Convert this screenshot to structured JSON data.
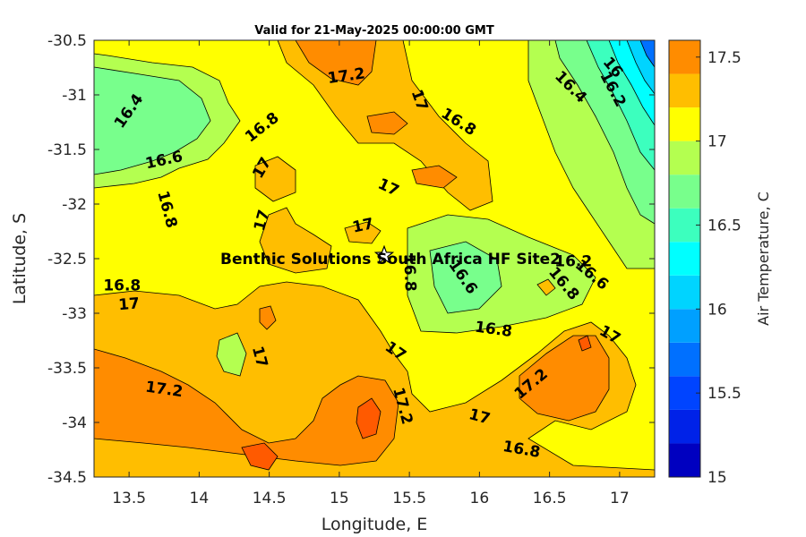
{
  "chart_data": {
    "type": "contour",
    "title": "Valid for 21-May-2025 00:00:00 GMT",
    "xlabel": "Longitude, E",
    "ylabel": "Latitude, S",
    "xlim": [
      13.25,
      17.25
    ],
    "ylim": [
      -34.5,
      -30.5
    ],
    "x_ticks": [
      "13.5",
      "14",
      "14.5",
      "15",
      "15.5",
      "16",
      "16.5",
      "17"
    ],
    "x_tick_values": [
      13.5,
      14,
      14.5,
      15,
      15.5,
      16,
      16.5,
      17
    ],
    "y_ticks": [
      "-30.5",
      "-31",
      "-31.5",
      "-32",
      "-32.5",
      "-33",
      "-33.5",
      "-34",
      "-34.5"
    ],
    "y_tick_values": [
      -30.5,
      -31,
      -31.5,
      -32,
      -32.5,
      -33,
      -33.5,
      -34,
      -34.5
    ],
    "colorbar": {
      "label": "Air Temperature, C",
      "range": [
        15,
        17.6
      ],
      "step": 0.2,
      "ticks": [
        "15",
        "15.5",
        "16",
        "16.5",
        "17",
        "17.5"
      ],
      "tick_values": [
        15,
        15.5,
        16,
        16.5,
        17,
        17.5
      ],
      "colors": [
        "#0000c0",
        "#0022e8",
        "#0044ff",
        "#0070ff",
        "#00a0ff",
        "#00d4ff",
        "#00ffff",
        "#3cffbe",
        "#78ff8c",
        "#b4ff50",
        "#ffff00",
        "#ffbe00",
        "#ff8c00",
        "#ff5a00",
        "#ff0000"
      ]
    },
    "site": {
      "name": "Benthic Solutions South Africa HF Site2",
      "lon": 15.32,
      "lat": -32.47
    },
    "contour_labels": [
      {
        "text": "16.4",
        "lon": 13.5,
        "lat": -31.15,
        "angle": -55
      },
      {
        "text": "16.6",
        "lon": 13.75,
        "lat": -31.6,
        "angle": -12
      },
      {
        "text": "16.8",
        "lon": 13.77,
        "lat": -32.05,
        "angle": 75
      },
      {
        "text": "16.8",
        "lon": 13.45,
        "lat": -32.75,
        "angle": 0
      },
      {
        "text": "17",
        "lon": 13.5,
        "lat": -32.92,
        "angle": -5
      },
      {
        "text": "16.8",
        "lon": 14.45,
        "lat": -31.3,
        "angle": -38
      },
      {
        "text": "17",
        "lon": 14.45,
        "lat": -31.67,
        "angle": -60
      },
      {
        "text": "17",
        "lon": 14.45,
        "lat": -32.15,
        "angle": -75
      },
      {
        "text": "17.2",
        "lon": 15.05,
        "lat": -30.83,
        "angle": -8
      },
      {
        "text": "17",
        "lon": 15.57,
        "lat": -31.05,
        "angle": 70
      },
      {
        "text": "16.8",
        "lon": 15.85,
        "lat": -31.25,
        "angle": 32
      },
      {
        "text": "17",
        "lon": 15.35,
        "lat": -31.85,
        "angle": 25
      },
      {
        "text": "17",
        "lon": 15.17,
        "lat": -32.2,
        "angle": -12
      },
      {
        "text": "16.8",
        "lon": 15.5,
        "lat": -32.63,
        "angle": 88
      },
      {
        "text": "16.6",
        "lon": 15.88,
        "lat": -32.67,
        "angle": 55
      },
      {
        "text": "16.8",
        "lon": 16.1,
        "lat": -33.15,
        "angle": 8
      },
      {
        "text": "16.4",
        "lon": 16.65,
        "lat": -30.93,
        "angle": 45
      },
      {
        "text": "16.2",
        "lon": 16.95,
        "lat": -30.95,
        "angle": 62
      },
      {
        "text": "16",
        "lon": 16.95,
        "lat": -30.75,
        "angle": 50
      },
      {
        "text": "16.2",
        "lon": 16.67,
        "lat": -32.53,
        "angle": 0
      },
      {
        "text": "16.8",
        "lon": 16.6,
        "lat": -32.73,
        "angle": 50
      },
      {
        "text": "16.6",
        "lon": 16.8,
        "lat": -32.65,
        "angle": 40
      },
      {
        "text": "17",
        "lon": 16.93,
        "lat": -33.2,
        "angle": 30
      },
      {
        "text": "17",
        "lon": 14.43,
        "lat": -33.4,
        "angle": 75
      },
      {
        "text": "17",
        "lon": 15.4,
        "lat": -33.35,
        "angle": 35
      },
      {
        "text": "17.2",
        "lon": 15.45,
        "lat": -33.85,
        "angle": 75
      },
      {
        "text": "17.2",
        "lon": 13.75,
        "lat": -33.7,
        "angle": 8
      },
      {
        "text": "17.2",
        "lon": 16.37,
        "lat": -33.65,
        "angle": -40
      },
      {
        "text": "17",
        "lon": 16.0,
        "lat": -33.95,
        "angle": 15
      },
      {
        "text": "16.8",
        "lon": 16.3,
        "lat": -34.25,
        "angle": 10
      }
    ]
  }
}
